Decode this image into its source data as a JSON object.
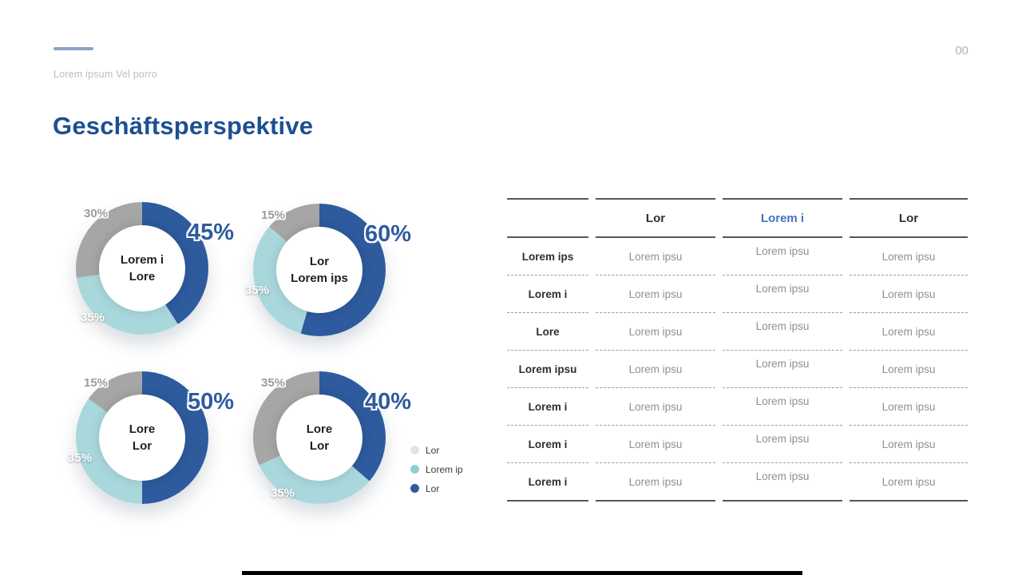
{
  "page": {
    "kicker": "Lorem ipsum Vel porro",
    "title": "Geschäftsperspektive",
    "page_number": "00"
  },
  "colors": {
    "title_blue": "#1d4f91",
    "accent_line": "#8ca3c8",
    "donut_blue": "#2e5b9e",
    "donut_teal": "#a9d8dc",
    "donut_gray": "#a6a6a6",
    "legend_gray": "#e4e4e4",
    "legend_teal": "#8fced3",
    "table_header_blue": "#4472c4"
  },
  "legend": [
    {
      "label": "Lor",
      "color": "#e4e4e4"
    },
    {
      "label": "Lorem ip",
      "color": "#8fced3"
    },
    {
      "label": "Lor",
      "color": "#2e5b9e"
    }
  ],
  "chart_data": [
    {
      "type": "pie",
      "subtype": "donut",
      "center_lines": [
        "Lorem i",
        "Lore"
      ],
      "segments": [
        {
          "name": "Lor",
          "value": 45,
          "color": "#2e5b9e",
          "label": "45%",
          "style": "big",
          "pos": "big"
        },
        {
          "name": "Lorem ip",
          "value": 35,
          "color": "#a9d8dc",
          "label": "35%",
          "style": "light",
          "pos": "bl"
        },
        {
          "name": "Lor",
          "value": 30,
          "color": "#a6a6a6",
          "label": "30%",
          "style": "muted",
          "pos": "tl"
        }
      ]
    },
    {
      "type": "pie",
      "subtype": "donut",
      "center_lines": [
        "Lor",
        "Lorem ips"
      ],
      "segments": [
        {
          "name": "Lor",
          "value": 60,
          "color": "#2e5b9e",
          "label": "60%",
          "style": "big",
          "pos": "big"
        },
        {
          "name": "Lorem ip",
          "value": 35,
          "color": "#a9d8dc",
          "label": "35%",
          "style": "light",
          "pos": "ml"
        },
        {
          "name": "Lor",
          "value": 15,
          "color": "#a6a6a6",
          "label": "15%",
          "style": "muted",
          "pos": "tl"
        }
      ]
    },
    {
      "type": "pie",
      "subtype": "donut",
      "center_lines": [
        "Lore",
        "Lor"
      ],
      "segments": [
        {
          "name": "Lor",
          "value": 50,
          "color": "#2e5b9e",
          "label": "50%",
          "style": "big",
          "pos": "big"
        },
        {
          "name": "Lorem ip",
          "value": 35,
          "color": "#a9d8dc",
          "label": "35%",
          "style": "light",
          "pos": "ml"
        },
        {
          "name": "Lor",
          "value": 15,
          "color": "#a6a6a6",
          "label": "15%",
          "style": "muted",
          "pos": "tl"
        }
      ]
    },
    {
      "type": "pie",
      "subtype": "donut",
      "center_lines": [
        "Lore",
        "Lor"
      ],
      "segments": [
        {
          "name": "Lor",
          "value": 40,
          "color": "#2e5b9e",
          "label": "40%",
          "style": "big",
          "pos": "big"
        },
        {
          "name": "Lorem ip",
          "value": 35,
          "color": "#a9d8dc",
          "label": "35%",
          "style": "light",
          "pos": "bb"
        },
        {
          "name": "Lor",
          "value": 35,
          "color": "#a6a6a6",
          "label": "35%",
          "style": "muted",
          "pos": "tl"
        }
      ]
    }
  ],
  "table": {
    "headers": [
      "",
      "Lor",
      "Lorem i",
      "Lor"
    ],
    "header_styles": [
      "none",
      "dark",
      "blue",
      "dark"
    ],
    "rows": [
      {
        "label": "Lorem ips",
        "cells": [
          "Lorem ipsu",
          "Lorem ipsu",
          "Lorem ipsu"
        ]
      },
      {
        "label": "Lorem i",
        "cells": [
          "Lorem ipsu",
          "Lorem ipsu",
          "Lorem ipsu"
        ]
      },
      {
        "label": "Lore",
        "cells": [
          "Lorem ipsu",
          "Lorem ipsu",
          "Lorem ipsu"
        ]
      },
      {
        "label": "Lorem ipsu",
        "cells": [
          "Lorem ipsu",
          "Lorem ipsu",
          "Lorem ipsu"
        ]
      },
      {
        "label": "Lorem i",
        "cells": [
          "Lorem ipsu",
          "Lorem ipsu",
          "Lorem ipsu"
        ]
      },
      {
        "label": "Lorem i",
        "cells": [
          "Lorem ipsu",
          "Lorem ipsu",
          "Lorem ipsu"
        ]
      },
      {
        "label": "Lorem i",
        "cells": [
          "Lorem ipsu",
          "Lorem ipsu",
          "Lorem ipsu"
        ]
      }
    ]
  }
}
